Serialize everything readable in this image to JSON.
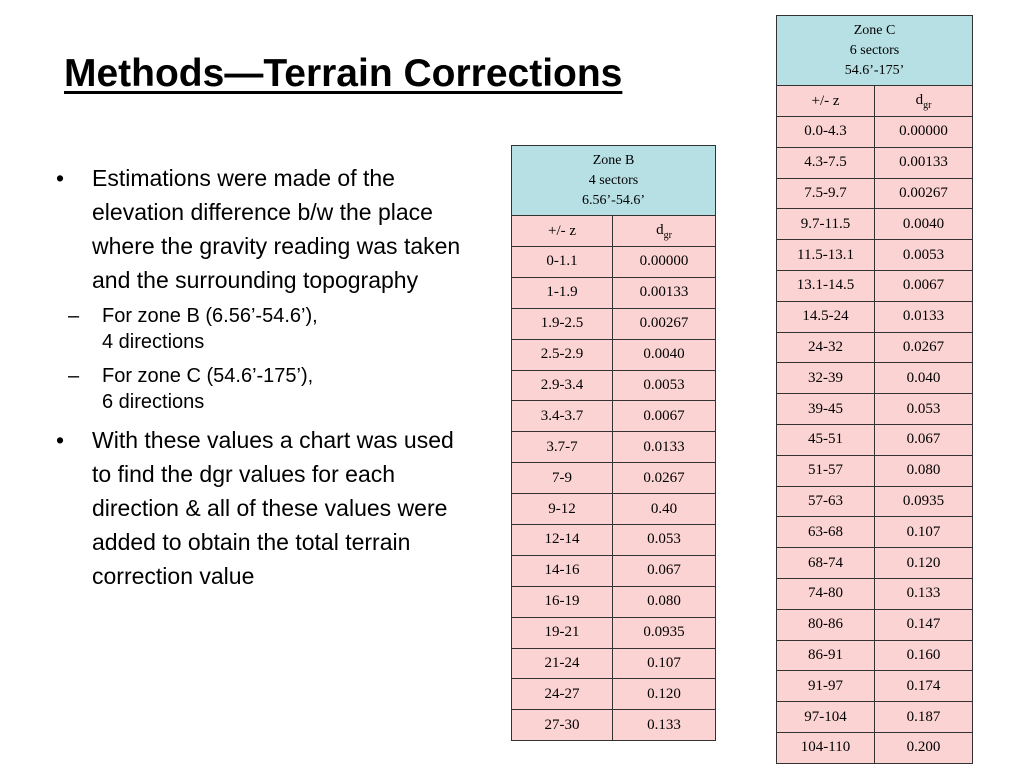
{
  "title": "Methods—Terrain Corrections",
  "bullets": {
    "b1": "Estimations were made of the elevation difference b/w the place where the gravity reading was taken and the surrounding topography",
    "sub1_line1": "For zone B (6.56’-54.6’),",
    "sub1_line2": "4 directions",
    "sub2_line1": "For zone C (54.6’-175’),",
    "sub2_line2": "6 directions",
    "b2": "With these values a chart was used to find the dgr values for each direction & all of these values were added to obtain the total terrain correction value"
  },
  "zone_b": {
    "header": [
      "Zone B",
      "4 sectors",
      "6.56’-54.6’"
    ],
    "col_z": "+/- z",
    "col_d": "d",
    "col_d_sub": "gr",
    "rows": [
      [
        "0-1.1",
        "0.00000"
      ],
      [
        "1-1.9",
        "0.00133"
      ],
      [
        "1.9-2.5",
        "0.00267"
      ],
      [
        "2.5-2.9",
        "0.0040"
      ],
      [
        "2.9-3.4",
        "0.0053"
      ],
      [
        "3.4-3.7",
        "0.0067"
      ],
      [
        "3.7-7",
        "0.0133"
      ],
      [
        "7-9",
        "0.0267"
      ],
      [
        "9-12",
        "0.40"
      ],
      [
        "12-14",
        "0.053"
      ],
      [
        "14-16",
        "0.067"
      ],
      [
        "16-19",
        "0.080"
      ],
      [
        "19-21",
        "0.0935"
      ],
      [
        "21-24",
        "0.107"
      ],
      [
        "24-27",
        "0.120"
      ],
      [
        "27-30",
        "0.133"
      ]
    ]
  },
  "zone_c": {
    "header": [
      "Zone C",
      "6 sectors",
      "54.6’-175’"
    ],
    "col_z": "+/- z",
    "col_d": "d",
    "col_d_sub": "gr",
    "rows": [
      [
        "0.0-4.3",
        "0.00000"
      ],
      [
        "4.3-7.5",
        "0.00133"
      ],
      [
        "7.5-9.7",
        "0.00267"
      ],
      [
        "9.7-11.5",
        "0.0040"
      ],
      [
        "11.5-13.1",
        "0.0053"
      ],
      [
        "13.1-14.5",
        "0.0067"
      ],
      [
        "14.5-24",
        "0.0133"
      ],
      [
        "24-32",
        "0.0267"
      ],
      [
        "32-39",
        "0.040"
      ],
      [
        "39-45",
        "0.053"
      ],
      [
        "45-51",
        "0.067"
      ],
      [
        "51-57",
        "0.080"
      ],
      [
        "57-63",
        "0.0935"
      ],
      [
        "63-68",
        "0.107"
      ],
      [
        "68-74",
        "0.120"
      ],
      [
        "74-80",
        "0.133"
      ],
      [
        "80-86",
        "0.147"
      ],
      [
        "86-91",
        "0.160"
      ],
      [
        "91-97",
        "0.174"
      ],
      [
        "97-104",
        "0.187"
      ],
      [
        "104-110",
        "0.200"
      ]
    ]
  }
}
